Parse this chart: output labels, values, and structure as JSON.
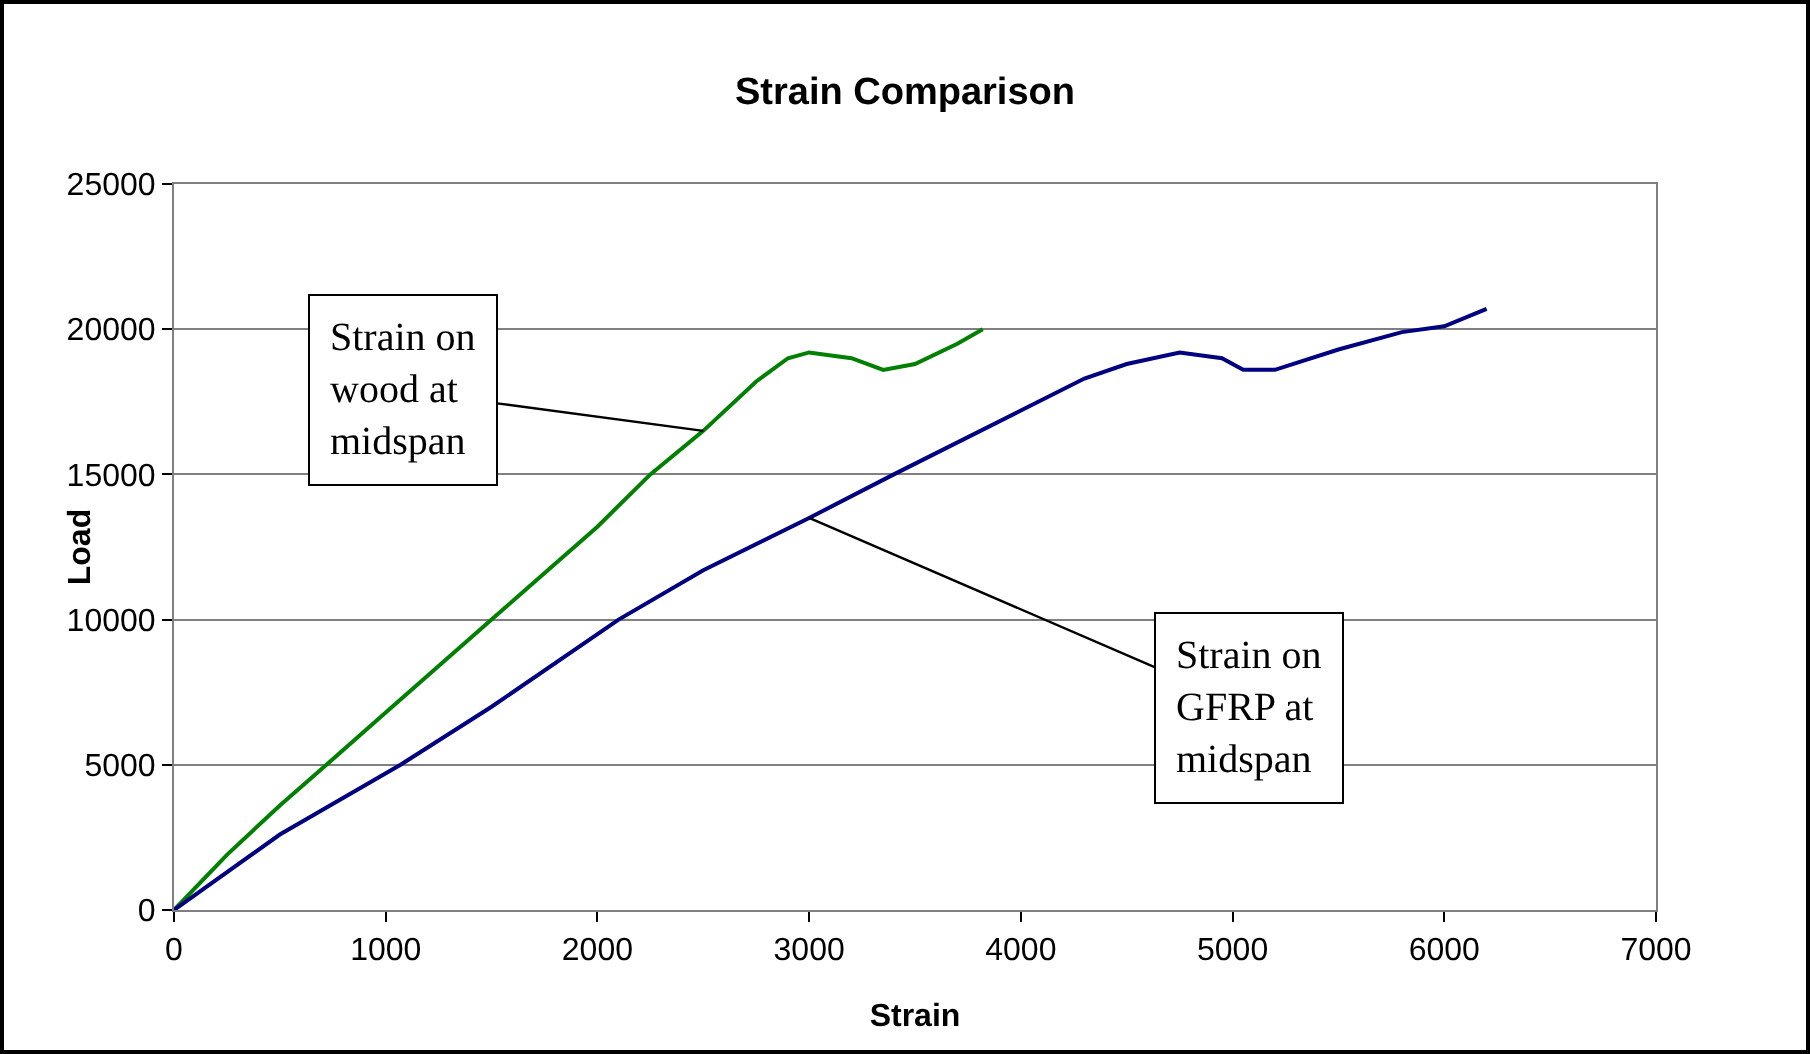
{
  "chart_data": {
    "type": "line",
    "title": "Strain Comparison",
    "xlabel": "Strain",
    "ylabel": "Load",
    "series": [
      {
        "color": "#008000",
        "x": [
          0,
          250,
          500,
          720,
          1000,
          1500,
          2000,
          2250,
          2500,
          2750,
          2900,
          3000,
          3200,
          3350,
          3500,
          3700,
          3820
        ],
        "values": [
          0,
          1900,
          3600,
          5000,
          6800,
          10000,
          13200,
          15000,
          16500,
          18200,
          19000,
          19200,
          19000,
          18600,
          18800,
          19500,
          20000
        ]
      },
      {
        "color": "#000080",
        "x": [
          0,
          500,
          1070,
          1500,
          2100,
          2500,
          3000,
          3400,
          4000,
          4300,
          4500,
          4750,
          4950,
          5050,
          5200,
          5500,
          5800,
          6000,
          6200
        ],
        "values": [
          0,
          2600,
          5000,
          7000,
          10000,
          11700,
          13500,
          15000,
          17200,
          18300,
          18800,
          19200,
          19000,
          18600,
          18600,
          19300,
          19900,
          20100,
          20700
        ]
      }
    ],
    "annotations": [
      {
        "text": "Strain on wood at midspan",
        "x": 2500,
        "y": 16500
      },
      {
        "text": "Strain on GFRP at midspan",
        "x": 3000,
        "y": 13500
      }
    ],
    "xlim": [
      0,
      7000
    ],
    "xticks": [
      0,
      1000,
      2000,
      3000,
      4000,
      5000,
      6000,
      7000
    ],
    "ylim": [
      0,
      25000
    ],
    "yticks": [
      0,
      5000,
      10000,
      15000,
      20000,
      25000
    ],
    "grid": "y",
    "marker": "none",
    "line_style": "solid"
  }
}
